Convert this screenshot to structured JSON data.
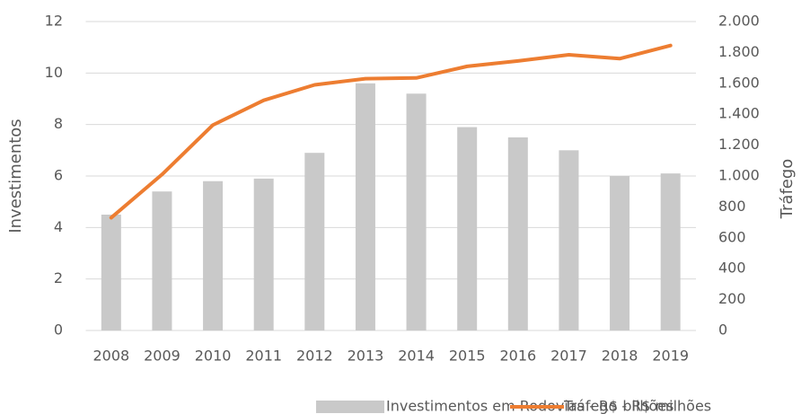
{
  "chart_data": {
    "type": "bar",
    "categories": [
      "2008",
      "2009",
      "2010",
      "2011",
      "2012",
      "2013",
      "2014",
      "2015",
      "2016",
      "2017",
      "2018",
      "2019"
    ],
    "series": [
      {
        "name": "Investimentos em Rodovias - R$ bilhões",
        "type": "bar",
        "color": "#c9c9c9",
        "axis": "y",
        "values": [
          4.5,
          5.4,
          5.8,
          5.9,
          6.9,
          9.6,
          9.2,
          7.9,
          7.5,
          7.0,
          6.0,
          6.1
        ]
      },
      {
        "name": "Tráfego - R$ milhões",
        "type": "line",
        "color": "#ed7d31",
        "axis": "y2",
        "values": [
          730,
          1010,
          1330,
          1490,
          1590,
          1630,
          1635,
          1710,
          1745,
          1785,
          1760,
          1845
        ]
      }
    ],
    "ylabel": "Investimentos",
    "y2label": "Tráfego",
    "ylim": [
      0,
      12
    ],
    "yticks": [
      0,
      2,
      4,
      6,
      8,
      10,
      12
    ],
    "y2lim": [
      0,
      2000
    ],
    "y2ticks": [
      0,
      200,
      400,
      600,
      800,
      {
        "value": 1000,
        "label": "1.000"
      },
      {
        "value": 1200,
        "label": "1.200"
      },
      {
        "value": 1400,
        "label": "1.400"
      },
      {
        "value": 1600,
        "label": "1.600"
      },
      {
        "value": 1800,
        "label": "1.800"
      },
      {
        "value": 2000,
        "label": "2.000"
      }
    ],
    "grid": true,
    "legend": "bottom"
  }
}
